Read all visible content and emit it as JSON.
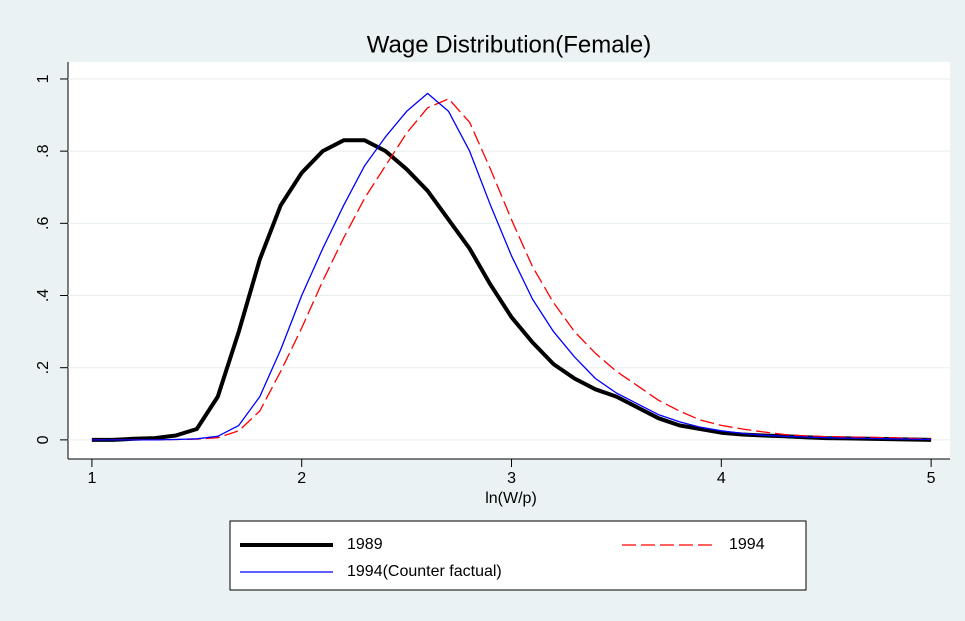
{
  "chart_data": {
    "type": "line",
    "title": "Wage Distribution(Female)",
    "x_label": "ln(W/p)",
    "x": [
      1.0,
      1.1,
      1.2,
      1.3,
      1.4,
      1.5,
      1.6,
      1.7,
      1.8,
      1.9,
      2.0,
      2.1,
      2.2,
      2.3,
      2.4,
      2.5,
      2.6,
      2.7,
      2.8,
      2.9,
      3.0,
      3.1,
      3.2,
      3.3,
      3.4,
      3.5,
      3.6,
      3.7,
      3.8,
      3.9,
      4.0,
      4.1,
      4.2,
      4.3,
      4.4,
      4.5,
      4.6,
      4.7,
      4.8,
      4.9,
      5.0
    ],
    "series": [
      {
        "name": "1989",
        "color": "#000000",
        "width": 4,
        "dash": "none",
        "values": [
          0,
          0,
          0.003,
          0.005,
          0.012,
          0.03,
          0.12,
          0.3,
          0.5,
          0.65,
          0.74,
          0.8,
          0.83,
          0.83,
          0.8,
          0.75,
          0.69,
          0.61,
          0.53,
          0.43,
          0.34,
          0.27,
          0.21,
          0.17,
          0.14,
          0.12,
          0.09,
          0.06,
          0.04,
          0.03,
          0.02,
          0.015,
          0.012,
          0.01,
          0.007,
          0.005,
          0.004,
          0.003,
          0.002,
          0.001,
          0
        ]
      },
      {
        "name": "1994",
        "color": "#ff0000",
        "width": 1.3,
        "dash": "14 5",
        "values": [
          0,
          0,
          0,
          0,
          0.001,
          0.002,
          0.006,
          0.025,
          0.08,
          0.19,
          0.31,
          0.44,
          0.56,
          0.67,
          0.76,
          0.85,
          0.92,
          0.945,
          0.88,
          0.75,
          0.61,
          0.48,
          0.38,
          0.3,
          0.24,
          0.19,
          0.15,
          0.11,
          0.08,
          0.055,
          0.04,
          0.03,
          0.022,
          0.015,
          0.011,
          0.009,
          0.008,
          0.007,
          0.006,
          0.004,
          0.002
        ]
      },
      {
        "name": "1994(Counter factual)",
        "color": "#0000ff",
        "width": 1.3,
        "dash": "none",
        "values": [
          0,
          0,
          0,
          0,
          0.001,
          0.003,
          0.01,
          0.04,
          0.12,
          0.25,
          0.4,
          0.53,
          0.65,
          0.76,
          0.84,
          0.91,
          0.96,
          0.91,
          0.8,
          0.65,
          0.51,
          0.39,
          0.3,
          0.23,
          0.17,
          0.13,
          0.1,
          0.07,
          0.05,
          0.035,
          0.025,
          0.018,
          0.013,
          0.01,
          0.008,
          0.006,
          0.005,
          0.004,
          0.003,
          0.002,
          0.001
        ]
      }
    ],
    "xlim": [
      0.886,
      5.09
    ],
    "xticks": [
      1,
      2,
      3,
      4,
      5
    ],
    "ylim": [
      -0.053,
      1.047
    ],
    "yticks": [
      0,
      {
        "value": 0.2,
        "label": ".2"
      },
      {
        "value": 0.4,
        "label": ".4"
      },
      {
        "value": 0.6,
        "label": ".6"
      },
      {
        "value": 0.8,
        "label": ".8"
      },
      1
    ],
    "grid": true,
    "legend": "bottom"
  }
}
